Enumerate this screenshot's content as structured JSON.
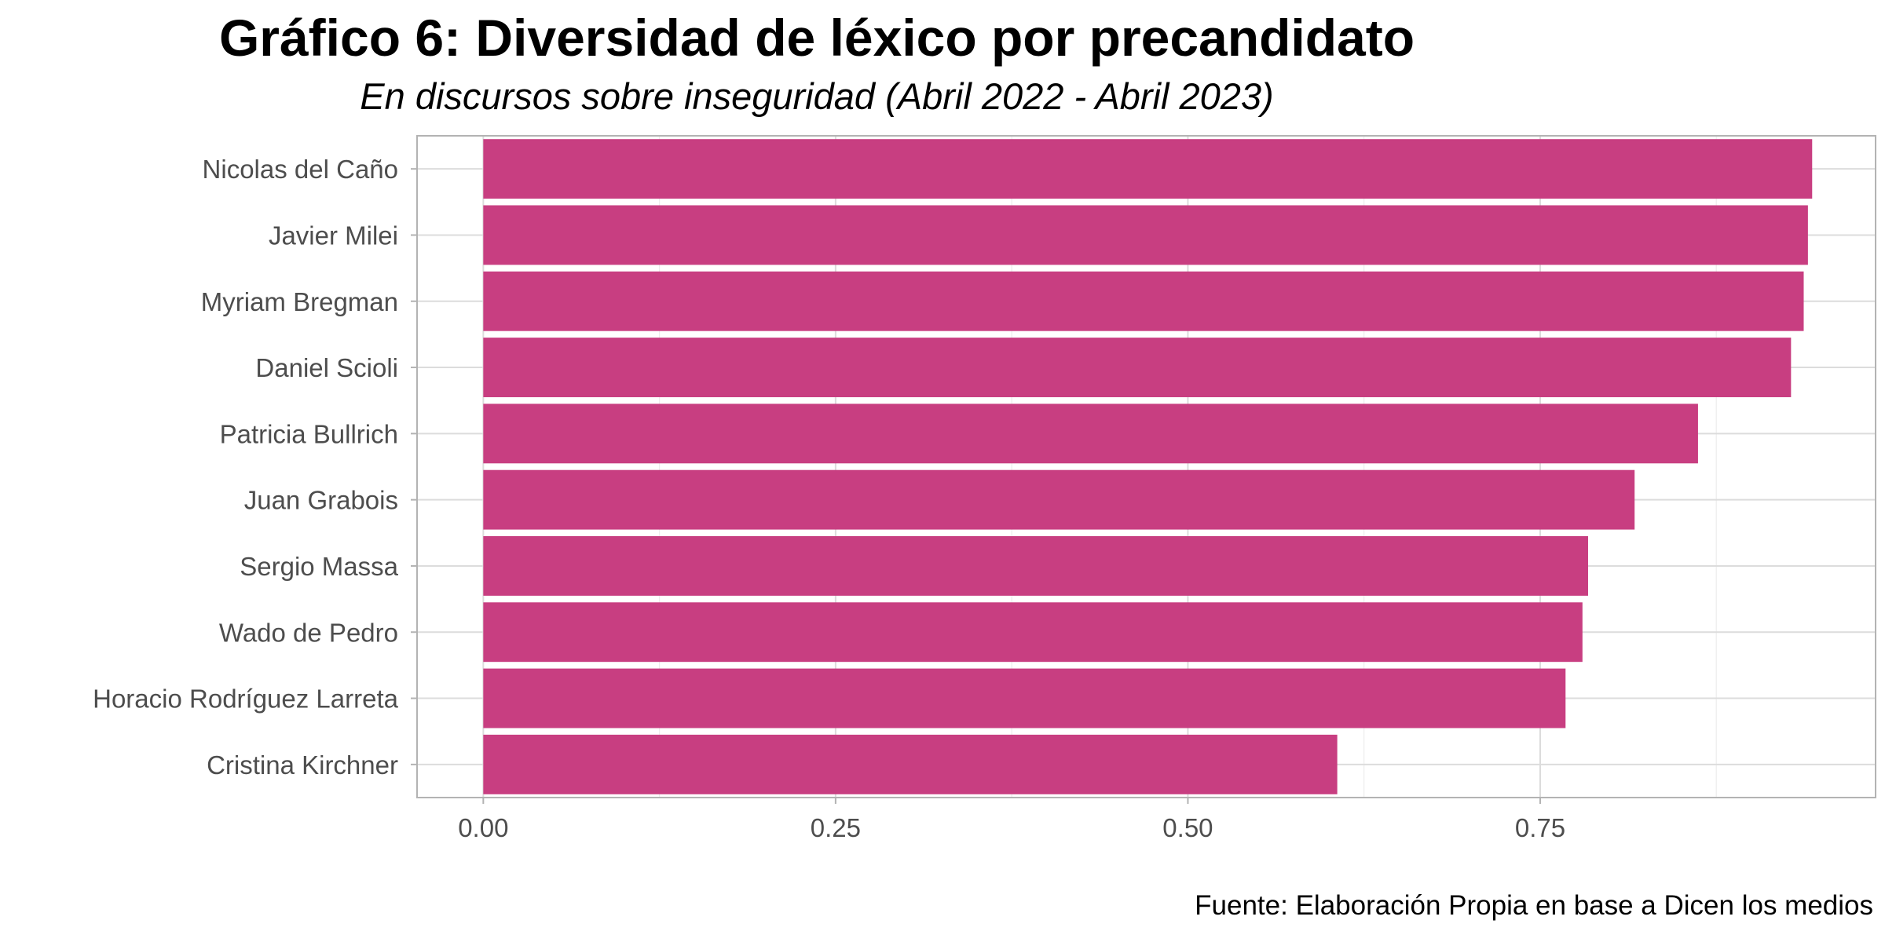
{
  "chart_data": {
    "type": "bar",
    "orientation": "horizontal",
    "title": "Gráfico 6: Diversidad de léxico por precandidato",
    "subtitle": "En discursos sobre inseguridad (Abril 2022 - Abril 2023)",
    "caption": "Fuente: Elaboración Propia en base a Dicen los medios",
    "xlabel": "",
    "ylabel": "",
    "categories": [
      "Nicolas del Caño",
      "Javier Milei",
      "Myriam Bregman",
      "Daniel Scioli",
      "Patricia Bullrich",
      "Juan Grabois",
      "Sergio Massa",
      "Wado de Pedro",
      "Horacio Rodríguez Larreta",
      "Cristina Kirchner"
    ],
    "values": [
      0.943,
      0.94,
      0.937,
      0.928,
      0.862,
      0.817,
      0.784,
      0.78,
      0.768,
      0.606
    ],
    "xlim": [
      -0.047,
      0.988
    ],
    "xticks": [
      0.0,
      0.25,
      0.5,
      0.75
    ],
    "xtick_labels": [
      "0.00",
      "0.25",
      "0.50",
      "0.75"
    ],
    "grid": true,
    "bar_color": "#C83E81"
  }
}
